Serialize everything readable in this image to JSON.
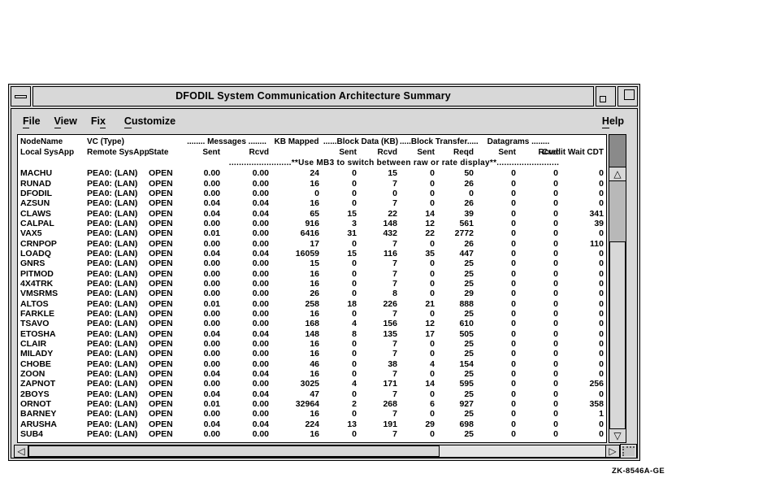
{
  "window": {
    "title": "DFODIL System Communication Architecture Summary"
  },
  "menubar": {
    "items": [
      {
        "pre": "",
        "mn": "F",
        "post": "ile"
      },
      {
        "pre": "",
        "mn": "V",
        "post": "iew"
      },
      {
        "pre": "Fi",
        "mn": "x",
        "post": ""
      },
      {
        "pre": "",
        "mn": "C",
        "post": "ustomize"
      }
    ],
    "help": {
      "pre": "",
      "mn": "H",
      "post": "elp"
    }
  },
  "table": {
    "header_line1": {
      "node": "NodeName",
      "vc": "VC (Type)",
      "messages": "........ Messages ........",
      "kb_mapped": "KB Mapped",
      "block_data": "......Block Data (KB)",
      "block_transfer": ".....Block Transfer.....",
      "datagrams": "Datagrams ........"
    },
    "header_line2": {
      "local": "Local SysApp",
      "remote": "Remote SysApp",
      "state": "State",
      "sent": "Sent",
      "rcvd": "Rcvd",
      "reqd": "Reqd",
      "credit": "Credit Wait CDT"
    },
    "notice": ".........................**Use MB3 to switch between raw or rate display**.........................",
    "col_names": [
      "node-name",
      "remote-sysapp",
      "state",
      "messages-sent",
      "messages-rcvd",
      "kb-mapped",
      "block-data-sent",
      "block-data-rcvd",
      "block-transfer-sent",
      "block-transfer-reqd",
      "datagrams-sent",
      "datagrams-rcvd",
      "credit-wait-cdt"
    ],
    "rows": [
      {
        "node": "MACHU",
        "remote": "PEA0: (LAN)",
        "state": "OPEN",
        "values": [
          "0.00",
          "0.00",
          "24",
          "0",
          "15",
          "0",
          "50",
          "0",
          "0",
          "0"
        ]
      },
      {
        "node": "RUNAD",
        "remote": "PEA0: (LAN)",
        "state": "OPEN",
        "values": [
          "0.00",
          "0.00",
          "16",
          "0",
          "7",
          "0",
          "26",
          "0",
          "0",
          "0"
        ]
      },
      {
        "node": "DFODIL",
        "remote": "PEA0: (LAN)",
        "state": "OPEN",
        "values": [
          "0.00",
          "0.00",
          "0",
          "0",
          "0",
          "0",
          "0",
          "0",
          "0",
          "0"
        ]
      },
      {
        "node": "AZSUN",
        "remote": "PEA0: (LAN)",
        "state": "OPEN",
        "values": [
          "0.04",
          "0.04",
          "16",
          "0",
          "7",
          "0",
          "26",
          "0",
          "0",
          "0"
        ]
      },
      {
        "node": "CLAWS",
        "remote": "PEA0: (LAN)",
        "state": "OPEN",
        "values": [
          "0.04",
          "0.04",
          "65",
          "15",
          "22",
          "14",
          "39",
          "0",
          "0",
          "341"
        ]
      },
      {
        "node": "CALPAL",
        "remote": "PEA0: (LAN)",
        "state": "OPEN",
        "values": [
          "0.00",
          "0.00",
          "916",
          "3",
          "148",
          "12",
          "561",
          "0",
          "0",
          "39"
        ]
      },
      {
        "node": "VAX5",
        "remote": "PEA0: (LAN)",
        "state": "OPEN",
        "values": [
          "0.01",
          "0.00",
          "6416",
          "31",
          "432",
          "22",
          "2772",
          "0",
          "0",
          "0"
        ]
      },
      {
        "node": "CRNPOP",
        "remote": "PEA0: (LAN)",
        "state": "OPEN",
        "values": [
          "0.00",
          "0.00",
          "17",
          "0",
          "7",
          "0",
          "26",
          "0",
          "0",
          "110"
        ]
      },
      {
        "node": "LOADQ",
        "remote": "PEA0: (LAN)",
        "state": "OPEN",
        "values": [
          "0.04",
          "0.04",
          "16059",
          "15",
          "116",
          "35",
          "447",
          "0",
          "0",
          "0"
        ]
      },
      {
        "node": "GNRS",
        "remote": "PEA0: (LAN)",
        "state": "OPEN",
        "values": [
          "0.00",
          "0.00",
          "15",
          "0",
          "7",
          "0",
          "25",
          "0",
          "0",
          "0"
        ]
      },
      {
        "node": "PITMOD",
        "remote": "PEA0: (LAN)",
        "state": "OPEN",
        "values": [
          "0.00",
          "0.00",
          "16",
          "0",
          "7",
          "0",
          "25",
          "0",
          "0",
          "0"
        ]
      },
      {
        "node": "4X4TRK",
        "remote": "PEA0: (LAN)",
        "state": "OPEN",
        "values": [
          "0.00",
          "0.00",
          "16",
          "0",
          "7",
          "0",
          "25",
          "0",
          "0",
          "0"
        ]
      },
      {
        "node": "VMSRMS",
        "remote": "PEA0: (LAN)",
        "state": "OPEN",
        "values": [
          "0.00",
          "0.00",
          "26",
          "0",
          "8",
          "0",
          "29",
          "0",
          "0",
          "0"
        ]
      },
      {
        "node": "ALTOS",
        "remote": "PEA0: (LAN)",
        "state": "OPEN",
        "values": [
          "0.01",
          "0.00",
          "258",
          "18",
          "226",
          "21",
          "888",
          "0",
          "0",
          "0"
        ]
      },
      {
        "node": "FARKLE",
        "remote": "PEA0: (LAN)",
        "state": "OPEN",
        "values": [
          "0.00",
          "0.00",
          "16",
          "0",
          "7",
          "0",
          "25",
          "0",
          "0",
          "0"
        ]
      },
      {
        "node": "TSAVO",
        "remote": "PEA0: (LAN)",
        "state": "OPEN",
        "values": [
          "0.00",
          "0.00",
          "168",
          "4",
          "156",
          "12",
          "610",
          "0",
          "0",
          "0"
        ]
      },
      {
        "node": "ETOSHA",
        "remote": "PEA0: (LAN)",
        "state": "OPEN",
        "values": [
          "0.04",
          "0.04",
          "148",
          "8",
          "135",
          "17",
          "505",
          "0",
          "0",
          "0"
        ]
      },
      {
        "node": "CLAIR",
        "remote": "PEA0: (LAN)",
        "state": "OPEN",
        "values": [
          "0.00",
          "0.00",
          "16",
          "0",
          "7",
          "0",
          "25",
          "0",
          "0",
          "0"
        ]
      },
      {
        "node": "MILADY",
        "remote": "PEA0: (LAN)",
        "state": "OPEN",
        "values": [
          "0.00",
          "0.00",
          "16",
          "0",
          "7",
          "0",
          "25",
          "0",
          "0",
          "0"
        ]
      },
      {
        "node": "CHOBE",
        "remote": "PEA0: (LAN)",
        "state": "OPEN",
        "values": [
          "0.00",
          "0.00",
          "46",
          "0",
          "38",
          "4",
          "154",
          "0",
          "0",
          "0"
        ]
      },
      {
        "node": "ZOON",
        "remote": "PEA0: (LAN)",
        "state": "OPEN",
        "values": [
          "0.04",
          "0.04",
          "16",
          "0",
          "7",
          "0",
          "25",
          "0",
          "0",
          "0"
        ]
      },
      {
        "node": "ZAPNOT",
        "remote": "PEA0: (LAN)",
        "state": "OPEN",
        "values": [
          "0.00",
          "0.00",
          "3025",
          "4",
          "171",
          "14",
          "595",
          "0",
          "0",
          "256"
        ]
      },
      {
        "node": "2BOYS",
        "remote": "PEA0: (LAN)",
        "state": "OPEN",
        "values": [
          "0.04",
          "0.04",
          "47",
          "0",
          "7",
          "0",
          "25",
          "0",
          "0",
          "0"
        ]
      },
      {
        "node": "ORNOT",
        "remote": "PEA0: (LAN)",
        "state": "OPEN",
        "values": [
          "0.01",
          "0.00",
          "32964",
          "2",
          "268",
          "6",
          "927",
          "0",
          "0",
          "358"
        ]
      },
      {
        "node": "BARNEY",
        "remote": "PEA0: (LAN)",
        "state": "OPEN",
        "values": [
          "0.00",
          "0.00",
          "16",
          "0",
          "7",
          "0",
          "25",
          "0",
          "0",
          "1"
        ]
      },
      {
        "node": "ARUSHA",
        "remote": "PEA0: (LAN)",
        "state": "OPEN",
        "values": [
          "0.04",
          "0.04",
          "224",
          "13",
          "191",
          "29",
          "698",
          "0",
          "0",
          "0"
        ]
      },
      {
        "node": "SUB4",
        "remote": "PEA0: (LAN)",
        "state": "OPEN",
        "values": [
          "0.00",
          "0.00",
          "16",
          "0",
          "7",
          "0",
          "25",
          "0",
          "0",
          "0"
        ]
      }
    ]
  },
  "icons": {
    "scroll_up": "△",
    "scroll_down": "▽",
    "scroll_left": "◁",
    "scroll_right": "▷"
  },
  "colors": {
    "window_gray": "#d8d8d8",
    "content_white": "#ffffff",
    "text": "#000000",
    "trough_gray": "#b8b8b8",
    "header_filler_gray": "#8a8a8a"
  },
  "figure_label": "ZK-8546A-GE"
}
